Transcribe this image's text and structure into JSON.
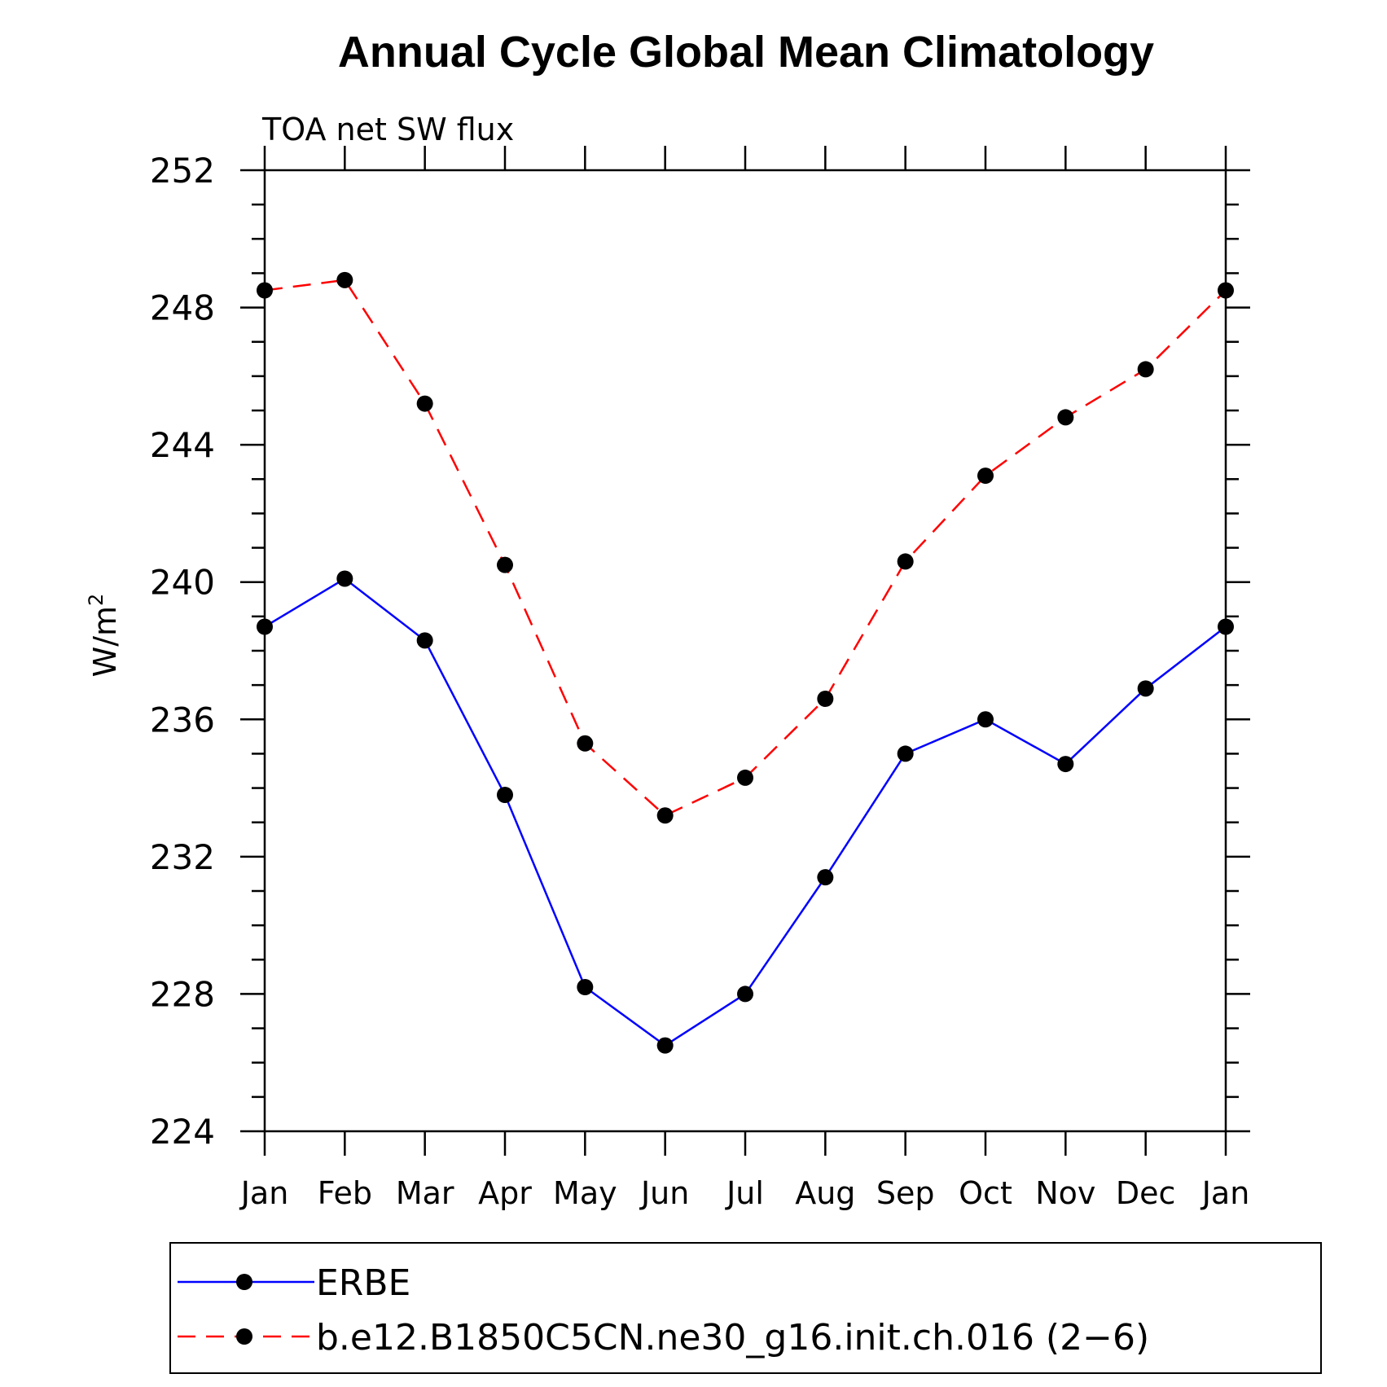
{
  "chart_data": {
    "type": "line",
    "title": "Annual Cycle Global Mean Climatology",
    "subtitle": "TOA net SW flux",
    "ylabel_base": "W/m",
    "ylabel_sup": "2",
    "ylim": [
      224,
      252
    ],
    "yticks": [
      "224",
      "228",
      "232",
      "236",
      "240",
      "244",
      "248",
      "252"
    ],
    "categories": [
      "Jan",
      "Feb",
      "Mar",
      "Apr",
      "May",
      "Jun",
      "Jul",
      "Aug",
      "Sep",
      "Oct",
      "Nov",
      "Dec",
      "Jan"
    ],
    "series": [
      {
        "name": "ERBE",
        "color": "#0000ff",
        "dash": "solid",
        "values": [
          238.7,
          240.1,
          238.3,
          233.8,
          228.2,
          226.5,
          228.0,
          231.4,
          235.0,
          236.0,
          234.7,
          236.9,
          238.7
        ]
      },
      {
        "name": "b.e12.B1850C5CN.ne30_g16.init.ch.016 (2−6)",
        "color": "#ff0000",
        "dash": "dashed",
        "values": [
          248.5,
          248.8,
          245.2,
          240.5,
          235.3,
          233.2,
          234.3,
          236.6,
          240.6,
          243.1,
          244.8,
          246.2,
          248.5
        ]
      }
    ],
    "marker": "filled-circle",
    "marker_color": "#000000",
    "grid": false,
    "legend_position": "bottom"
  }
}
